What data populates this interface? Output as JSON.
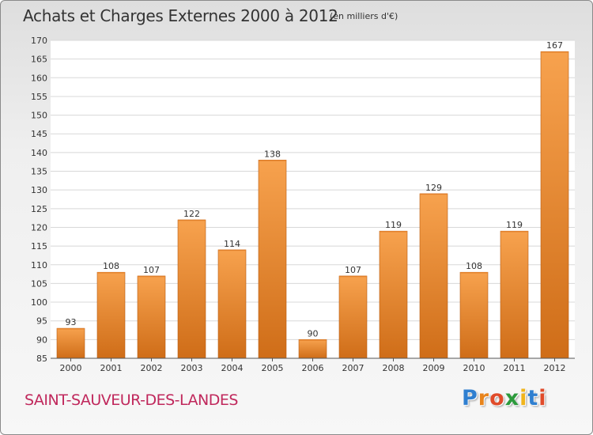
{
  "header": {
    "title": "Achats et Charges Externes 2000 à 2012",
    "unit": "(en milliers d'€)"
  },
  "footer": {
    "commune": "SAINT-SAUVEUR-DES-LANDES"
  },
  "logo": {
    "letters": [
      {
        "char": "P",
        "color": "#2f7fd0"
      },
      {
        "char": "r",
        "color": "#e8841c"
      },
      {
        "char": "o",
        "color": "#e04b2a"
      },
      {
        "char": "x",
        "color": "#2c9a3c"
      },
      {
        "char": "i",
        "color": "#f0b41c"
      },
      {
        "char": "t",
        "color": "#2f7fd0"
      },
      {
        "char": "i",
        "color": "#e04b2a"
      }
    ]
  },
  "chart_data": {
    "type": "bar",
    "title": "Achats et Charges Externes 2000 à 2012",
    "subtitle": "(en milliers d'€)",
    "categories": [
      "2000",
      "2001",
      "2002",
      "2003",
      "2004",
      "2005",
      "2006",
      "2007",
      "2008",
      "2009",
      "2010",
      "2011",
      "2012"
    ],
    "values": [
      93,
      108,
      107,
      122,
      114,
      138,
      90,
      107,
      119,
      129,
      108,
      119,
      167
    ],
    "ylim": [
      85,
      170
    ],
    "yticks": [
      85,
      90,
      95,
      100,
      105,
      110,
      115,
      120,
      125,
      130,
      135,
      140,
      145,
      150,
      155,
      160,
      165,
      170
    ],
    "grid": true,
    "bar_color": "#f0953a",
    "xlabel": "",
    "ylabel": ""
  }
}
